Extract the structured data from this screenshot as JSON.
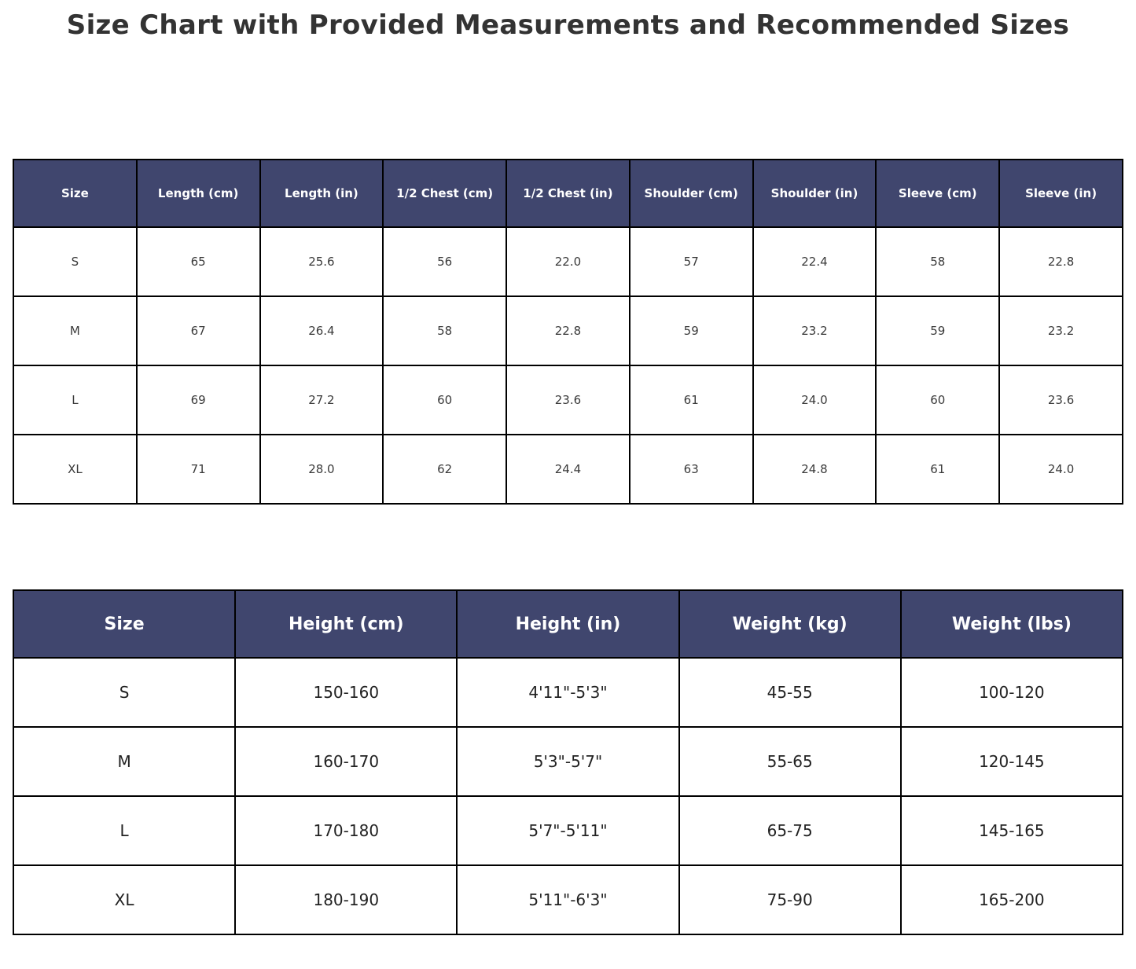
{
  "page": {
    "title": "Size Chart with Provided Measurements and Recommended Sizes"
  },
  "colors": {
    "header_bg": "#40466e",
    "header_text": "#ffffff",
    "border": "#000000",
    "title_text": "#333333",
    "cell_text": "#3a3a3a",
    "background": "#ffffff"
  },
  "chart_data": [
    {
      "type": "table",
      "name": "provided-measurements",
      "columns": [
        "Size",
        "Length (cm)",
        "Length (in)",
        "1/2 Chest (cm)",
        "1/2 Chest (in)",
        "Shoulder (cm)",
        "Shoulder (in)",
        "Sleeve (cm)",
        "Sleeve (in)"
      ],
      "rows": [
        [
          "S",
          "65",
          "25.6",
          "56",
          "22.0",
          "57",
          "22.4",
          "58",
          "22.8"
        ],
        [
          "M",
          "67",
          "26.4",
          "58",
          "22.8",
          "59",
          "23.2",
          "59",
          "23.2"
        ],
        [
          "L",
          "69",
          "27.2",
          "60",
          "23.6",
          "61",
          "24.0",
          "60",
          "23.6"
        ],
        [
          "XL",
          "71",
          "28.0",
          "62",
          "24.4",
          "63",
          "24.8",
          "61",
          "24.0"
        ]
      ]
    },
    {
      "type": "table",
      "name": "recommended-sizes",
      "columns": [
        "Size",
        "Height (cm)",
        "Height (in)",
        "Weight (kg)",
        "Weight (lbs)"
      ],
      "rows": [
        [
          "S",
          "150-160",
          "4'11\"-5'3\"",
          "45-55",
          "100-120"
        ],
        [
          "M",
          "160-170",
          "5'3\"-5'7\"",
          "55-65",
          "120-145"
        ],
        [
          "L",
          "170-180",
          "5'7\"-5'11\"",
          "65-75",
          "145-165"
        ],
        [
          "XL",
          "180-190",
          "5'11\"-6'3\"",
          "75-90",
          "165-200"
        ]
      ]
    }
  ]
}
